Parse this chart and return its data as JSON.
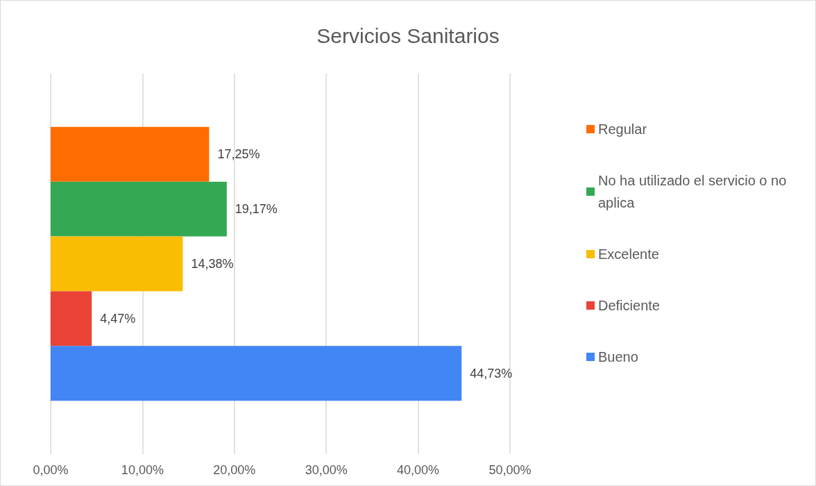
{
  "chart_data": {
    "type": "bar",
    "orientation": "horizontal",
    "title": "Servicios Sanitarios",
    "categories": [
      null
    ],
    "series": [
      {
        "name": "Regular",
        "color": "#ff6d01",
        "values": [
          17.25
        ],
        "value_labels": [
          "17,25%"
        ]
      },
      {
        "name": "No ha utilizado el servicio o no aplica",
        "color": "#34a853",
        "values": [
          19.17
        ],
        "value_labels": [
          "19,17%"
        ]
      },
      {
        "name": "Excelente",
        "color": "#fbbc04",
        "values": [
          14.38
        ],
        "value_labels": [
          "14,38%"
        ]
      },
      {
        "name": "Deficiente",
        "color": "#ea4335",
        "values": [
          4.47
        ],
        "value_labels": [
          "4,47%"
        ]
      },
      {
        "name": "Bueno",
        "color": "#4285f4",
        "values": [
          44.73
        ],
        "value_labels": [
          "44,73%"
        ]
      }
    ],
    "xlim": [
      0,
      50
    ],
    "xticks": [
      {
        "value": 0,
        "label": "0,00%"
      },
      {
        "value": 10,
        "label": "10,00%"
      },
      {
        "value": 20,
        "label": "20,00%"
      },
      {
        "value": 30,
        "label": "30,00%"
      },
      {
        "value": 40,
        "label": "40,00%"
      },
      {
        "value": 50,
        "label": "50,00%"
      }
    ],
    "grid": "x",
    "legend": "right",
    "tick_labels": "x"
  }
}
